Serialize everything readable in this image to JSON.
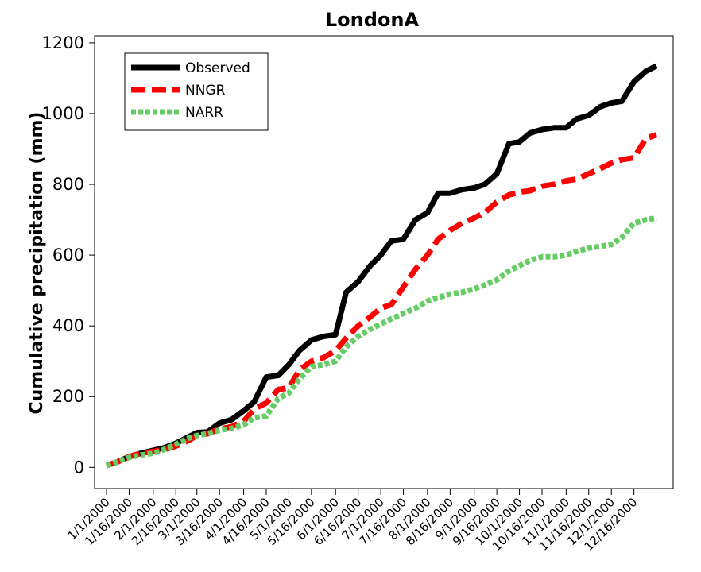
{
  "chart_data": {
    "type": "line",
    "title": "LondonA",
    "xlabel": "",
    "ylabel": "Cumulative precipitation (mm)",
    "ylim": [
      -60,
      1220
    ],
    "yticks": [
      0,
      200,
      400,
      600,
      800,
      1000,
      1200
    ],
    "categories": [
      "1/1/2000",
      "1/16/2000",
      "2/1/2000",
      "2/16/2000",
      "3/1/2000",
      "3/16/2000",
      "4/1/2000",
      "4/16/2000",
      "5/1/2000",
      "5/16/2000",
      "6/1/2000",
      "6/16/2000",
      "7/1/2000",
      "7/16/2000",
      "8/1/2000",
      "8/16/2000",
      "9/1/2000",
      "9/16/2000",
      "10/1/2000",
      "10/16/2000",
      "11/1/2000",
      "11/16/2000",
      "12/1/2000",
      "12/16/2000"
    ],
    "legend_position": "top-left",
    "grid": false,
    "series": [
      {
        "name": "Observed",
        "color": "#000000",
        "dash": "solid",
        "x": [
          "1/1/2000",
          "1/8/2000",
          "1/16/2000",
          "1/24/2000",
          "2/1/2000",
          "2/8/2000",
          "2/16/2000",
          "2/24/2000",
          "3/1/2000",
          "3/8/2000",
          "3/16/2000",
          "3/24/2000",
          "4/1/2000",
          "4/8/2000",
          "4/16/2000",
          "4/24/2000",
          "5/1/2000",
          "5/8/2000",
          "5/16/2000",
          "5/24/2000",
          "6/1/2000",
          "6/8/2000",
          "6/16/2000",
          "6/24/2000",
          "7/1/2000",
          "7/8/2000",
          "7/16/2000",
          "7/24/2000",
          "8/1/2000",
          "8/8/2000",
          "8/16/2000",
          "8/24/2000",
          "9/1/2000",
          "9/8/2000",
          "9/16/2000",
          "9/24/2000",
          "10/1/2000",
          "10/8/2000",
          "10/16/2000",
          "10/24/2000",
          "11/1/2000",
          "11/8/2000",
          "11/16/2000",
          "11/24/2000",
          "12/1/2000",
          "12/8/2000",
          "12/16/2000",
          "12/24/2000",
          "12/31/2000"
        ],
        "values": [
          5,
          15,
          30,
          40,
          48,
          55,
          68,
          85,
          98,
          100,
          125,
          135,
          160,
          185,
          255,
          260,
          290,
          330,
          360,
          370,
          375,
          495,
          525,
          570,
          600,
          640,
          645,
          700,
          720,
          775,
          775,
          785,
          790,
          800,
          830,
          915,
          920,
          945,
          955,
          960,
          960,
          985,
          995,
          1020,
          1030,
          1035,
          1090,
          1120,
          1135
        ]
      },
      {
        "name": "NNGR",
        "color": "#ff0000",
        "dash": "dashed",
        "x": [
          "1/1/2000",
          "1/8/2000",
          "1/16/2000",
          "1/24/2000",
          "2/1/2000",
          "2/8/2000",
          "2/16/2000",
          "2/24/2000",
          "3/1/2000",
          "3/8/2000",
          "3/16/2000",
          "3/24/2000",
          "4/1/2000",
          "4/8/2000",
          "4/16/2000",
          "4/24/2000",
          "5/1/2000",
          "5/8/2000",
          "5/16/2000",
          "5/24/2000",
          "6/1/2000",
          "6/8/2000",
          "6/16/2000",
          "6/24/2000",
          "7/1/2000",
          "7/8/2000",
          "7/16/2000",
          "7/24/2000",
          "8/1/2000",
          "8/8/2000",
          "8/16/2000",
          "8/24/2000",
          "9/1/2000",
          "9/8/2000",
          "9/16/2000",
          "9/24/2000",
          "10/1/2000",
          "10/8/2000",
          "10/16/2000",
          "10/24/2000",
          "11/1/2000",
          "11/8/2000",
          "11/16/2000",
          "11/24/2000",
          "12/1/2000",
          "12/8/2000",
          "12/16/2000",
          "12/24/2000",
          "12/31/2000"
        ],
        "values": [
          5,
          15,
          30,
          40,
          45,
          50,
          60,
          75,
          90,
          95,
          108,
          115,
          130,
          165,
          182,
          220,
          225,
          275,
          300,
          310,
          330,
          365,
          400,
          425,
          450,
          460,
          510,
          560,
          600,
          645,
          670,
          690,
          705,
          720,
          750,
          770,
          778,
          782,
          795,
          800,
          810,
          815,
          830,
          845,
          860,
          870,
          875,
          930,
          940
        ]
      },
      {
        "name": "NARR",
        "color": "#66cc66",
        "dash": "dotted",
        "x": [
          "1/1/2000",
          "1/8/2000",
          "1/16/2000",
          "1/24/2000",
          "2/1/2000",
          "2/8/2000",
          "2/16/2000",
          "2/24/2000",
          "3/1/2000",
          "3/8/2000",
          "3/16/2000",
          "3/24/2000",
          "4/1/2000",
          "4/8/2000",
          "4/16/2000",
          "4/24/2000",
          "5/1/2000",
          "5/8/2000",
          "5/16/2000",
          "5/24/2000",
          "6/1/2000",
          "6/8/2000",
          "6/16/2000",
          "6/24/2000",
          "7/1/2000",
          "7/8/2000",
          "7/16/2000",
          "7/24/2000",
          "8/1/2000",
          "8/8/2000",
          "8/16/2000",
          "8/24/2000",
          "9/1/2000",
          "9/8/2000",
          "9/16/2000",
          "9/24/2000",
          "10/1/2000",
          "10/8/2000",
          "10/16/2000",
          "10/24/2000",
          "11/1/2000",
          "11/8/2000",
          "11/16/2000",
          "11/24/2000",
          "12/1/2000",
          "12/8/2000",
          "12/16/2000",
          "12/24/2000",
          "12/31/2000"
        ],
        "values": [
          5,
          15,
          28,
          35,
          40,
          50,
          65,
          82,
          90,
          95,
          105,
          110,
          120,
          140,
          145,
          195,
          210,
          250,
          285,
          290,
          300,
          340,
          370,
          390,
          405,
          420,
          435,
          450,
          470,
          480,
          490,
          495,
          505,
          515,
          530,
          555,
          570,
          585,
          595,
          595,
          600,
          610,
          620,
          625,
          630,
          650,
          690,
          700,
          705
        ]
      }
    ]
  }
}
